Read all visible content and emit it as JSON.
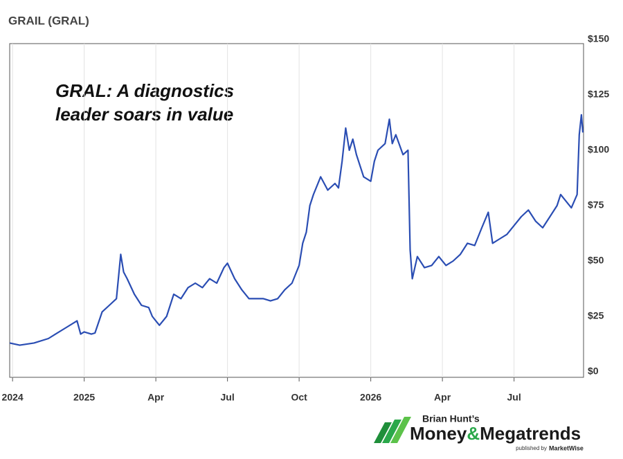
{
  "chart_data": {
    "type": "line",
    "title": "GRAIL (GRAL)",
    "annotation": [
      "GRAL: A diagnostics",
      "leader soars in value"
    ],
    "color": "#2a4db3",
    "grid": true,
    "xlim": [
      -0.04,
      7.97
    ],
    "ylim": [
      0,
      150
    ],
    "xticks": [
      {
        "value": 0,
        "label": "2024"
      },
      {
        "value": 1,
        "label": "2025"
      },
      {
        "value": 2,
        "label": "Apr"
      },
      {
        "value": 3,
        "label": "Jul"
      },
      {
        "value": 4,
        "label": "Oct"
      },
      {
        "value": 5,
        "label": "2026"
      },
      {
        "value": 6,
        "label": "Apr"
      },
      {
        "value": 7,
        "label": "Jul"
      }
    ],
    "yticks": [
      {
        "value": 0,
        "label": "$0"
      },
      {
        "value": 25,
        "label": "$25"
      },
      {
        "value": 50,
        "label": "$50"
      },
      {
        "value": 75,
        "label": "$75"
      },
      {
        "value": 100,
        "label": "$100"
      },
      {
        "value": 125,
        "label": "$125"
      },
      {
        "value": 150,
        "label": "$150"
      }
    ],
    "x": [
      -0.04,
      0.1,
      0.3,
      0.5,
      0.6,
      0.75,
      0.9,
      0.95,
      1.0,
      1.1,
      1.15,
      1.25,
      1.35,
      1.45,
      1.51,
      1.55,
      1.6,
      1.7,
      1.8,
      1.9,
      1.95,
      2.0,
      2.05,
      2.15,
      2.25,
      2.35,
      2.45,
      2.55,
      2.65,
      2.75,
      2.85,
      2.95,
      3.0,
      3.1,
      3.2,
      3.3,
      3.4,
      3.5,
      3.6,
      3.7,
      3.8,
      3.9,
      4.0,
      4.05,
      4.1,
      4.15,
      4.2,
      4.3,
      4.4,
      4.5,
      4.55,
      4.6,
      4.65,
      4.7,
      4.75,
      4.8,
      4.9,
      5.0,
      5.05,
      5.1,
      5.2,
      5.26,
      5.3,
      5.35,
      5.45,
      5.52,
      5.55,
      5.58,
      5.65,
      5.75,
      5.85,
      5.95,
      6.05,
      6.15,
      6.25,
      6.35,
      6.45,
      6.55,
      6.64,
      6.7,
      6.8,
      6.9,
      7.0,
      7.1,
      7.2,
      7.3,
      7.4,
      7.5,
      7.6,
      7.65,
      7.7,
      7.8,
      7.88,
      7.91,
      7.94,
      7.96
    ],
    "values": [
      13,
      12,
      13,
      15,
      17,
      20,
      23,
      17,
      18,
      17,
      17.5,
      27,
      30,
      33,
      53,
      45,
      42,
      35,
      30,
      29,
      25,
      23,
      21,
      25,
      35,
      33,
      38,
      40,
      38,
      42,
      40,
      47,
      49,
      42,
      37,
      33,
      33,
      33,
      32,
      33,
      37,
      40,
      48,
      58,
      63,
      75,
      80,
      88,
      82,
      85,
      83,
      95,
      110,
      100,
      105,
      98,
      88,
      86,
      95,
      100,
      103,
      114,
      103,
      107,
      98,
      100,
      55,
      42,
      52,
      47,
      48,
      52,
      48,
      50,
      53,
      58,
      57,
      65,
      72,
      58,
      60,
      62,
      66,
      70,
      73,
      68,
      65,
      70,
      75,
      80,
      78,
      74,
      80,
      107,
      116,
      108
    ]
  },
  "logo": {
    "byline": "Brian Hunt’s",
    "brand": [
      "Money",
      "&",
      "Megatrends"
    ],
    "publisher": [
      "published by",
      "MarketWise"
    ]
  }
}
